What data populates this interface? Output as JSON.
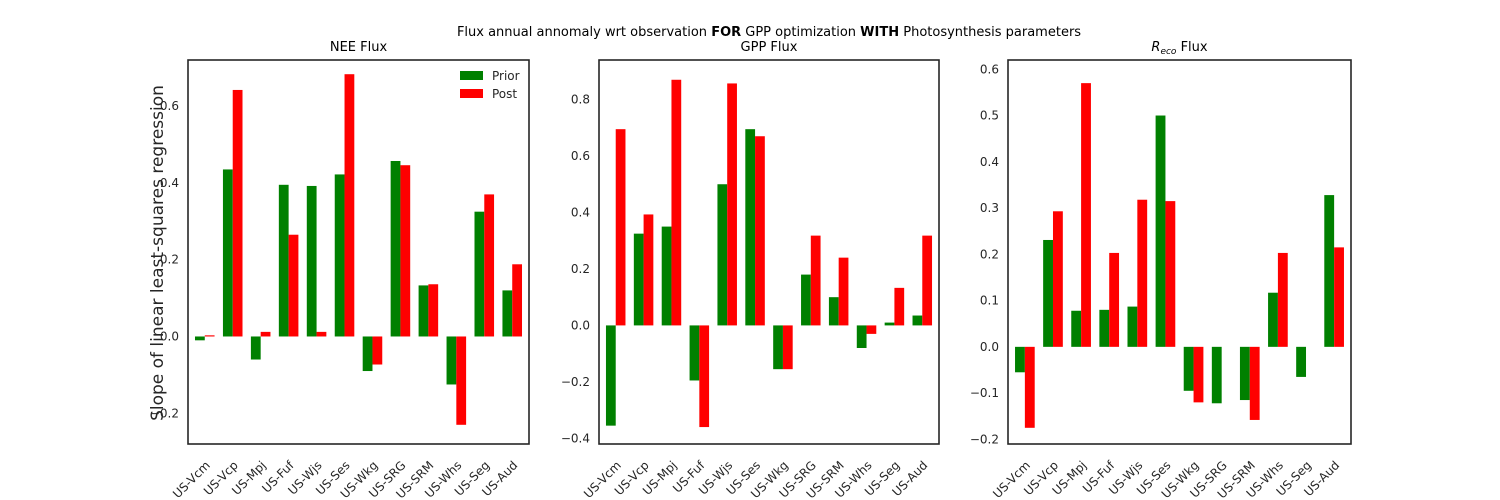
{
  "figure": {
    "suptitle_parts": [
      {
        "text": "Flux annual annomaly wrt observation ",
        "bold": false
      },
      {
        "text": "FOR",
        "bold": true
      },
      {
        "text": " GPP optimization ",
        "bold": false
      },
      {
        "text": "WITH",
        "bold": true
      },
      {
        "text": " Photosynthesis parameters",
        "bold": false
      }
    ],
    "ylabel": "Slope of linear least-squares regression",
    "colors": {
      "prior": "#008000",
      "post": "#ff0000",
      "frame": "#262626"
    }
  },
  "chart_data": [
    {
      "type": "bar",
      "title": "NEE Flux",
      "title_sub": "",
      "categories": [
        "US-Vcm",
        "US-Vcp",
        "US-Mpj",
        "US-Fuf",
        "US-Wjs",
        "US-Ses",
        "US-Wkg",
        "US-SRG",
        "US-SRM",
        "US-Whs",
        "US-Seg",
        "US-Aud"
      ],
      "series": [
        {
          "name": "Prior",
          "color": "#008000",
          "values": [
            -0.01,
            0.435,
            -0.06,
            0.395,
            0.392,
            0.422,
            -0.09,
            0.457,
            0.133,
            -0.125,
            0.325,
            0.12
          ]
        },
        {
          "name": "Post",
          "color": "#ff0000",
          "values": [
            0.003,
            0.642,
            0.012,
            0.265,
            0.012,
            0.683,
            -0.073,
            0.446,
            0.136,
            -0.23,
            0.37,
            0.188
          ]
        }
      ],
      "ylim": [
        -0.28,
        0.72
      ],
      "yticks": [
        -0.2,
        0.0,
        0.2,
        0.4,
        0.6
      ],
      "ytick_labels": [
        "−0.2",
        "0.0",
        "0.2",
        "0.4",
        "0.6"
      ],
      "legend": "top-right",
      "grid": false
    },
    {
      "type": "bar",
      "title": "GPP Flux",
      "title_sub": "",
      "categories": [
        "US-Vcm",
        "US-Vcp",
        "US-Mpj",
        "US-Fuf",
        "US-Wjs",
        "US-Ses",
        "US-Wkg",
        "US-SRG",
        "US-SRM",
        "US-Whs",
        "US-Seg",
        "US-Aud"
      ],
      "series": [
        {
          "name": "Prior",
          "color": "#008000",
          "values": [
            -0.355,
            0.325,
            0.35,
            -0.195,
            0.5,
            0.695,
            -0.155,
            0.18,
            0.1,
            -0.08,
            0.01,
            0.035
          ]
        },
        {
          "name": "Post",
          "color": "#ff0000",
          "values": [
            0.695,
            0.393,
            0.87,
            -0.36,
            0.857,
            0.67,
            -0.155,
            0.318,
            0.24,
            -0.03,
            0.133,
            0.318
          ]
        }
      ],
      "ylim": [
        -0.42,
        0.94
      ],
      "yticks": [
        -0.4,
        -0.2,
        0.0,
        0.2,
        0.4,
        0.6,
        0.8
      ],
      "ytick_labels": [
        "−0.4",
        "−0.2",
        "0.0",
        "0.2",
        "0.4",
        "0.6",
        "0.8"
      ],
      "legend": "none",
      "grid": false
    },
    {
      "type": "bar",
      "title": "R",
      "title_sub": "eco",
      "title_suffix": " Flux",
      "categories": [
        "US-Vcm",
        "US-Vcp",
        "US-Mpj",
        "US-Fuf",
        "US-Wjs",
        "US-Ses",
        "US-Wkg",
        "US-SRG",
        "US-SRM",
        "US-Whs",
        "US-Seg",
        "US-Aud"
      ],
      "series": [
        {
          "name": "Prior",
          "color": "#008000",
          "values": [
            -0.055,
            0.231,
            0.078,
            0.08,
            0.087,
            0.5,
            -0.095,
            -0.122,
            -0.115,
            0.117,
            -0.065,
            0.328
          ]
        },
        {
          "name": "Post",
          "color": "#ff0000",
          "values": [
            -0.175,
            0.293,
            0.57,
            0.203,
            0.318,
            0.315,
            -0.12,
            0.0,
            -0.158,
            0.203,
            0.0,
            0.215
          ]
        }
      ],
      "ylim": [
        -0.21,
        0.62
      ],
      "yticks": [
        -0.2,
        -0.1,
        0.0,
        0.1,
        0.2,
        0.3,
        0.4,
        0.5,
        0.6
      ],
      "ytick_labels": [
        "−0.2",
        "−0.1",
        "0.0",
        "0.1",
        "0.2",
        "0.3",
        "0.4",
        "0.5",
        "0.6"
      ],
      "legend": "none",
      "grid": false
    }
  ]
}
